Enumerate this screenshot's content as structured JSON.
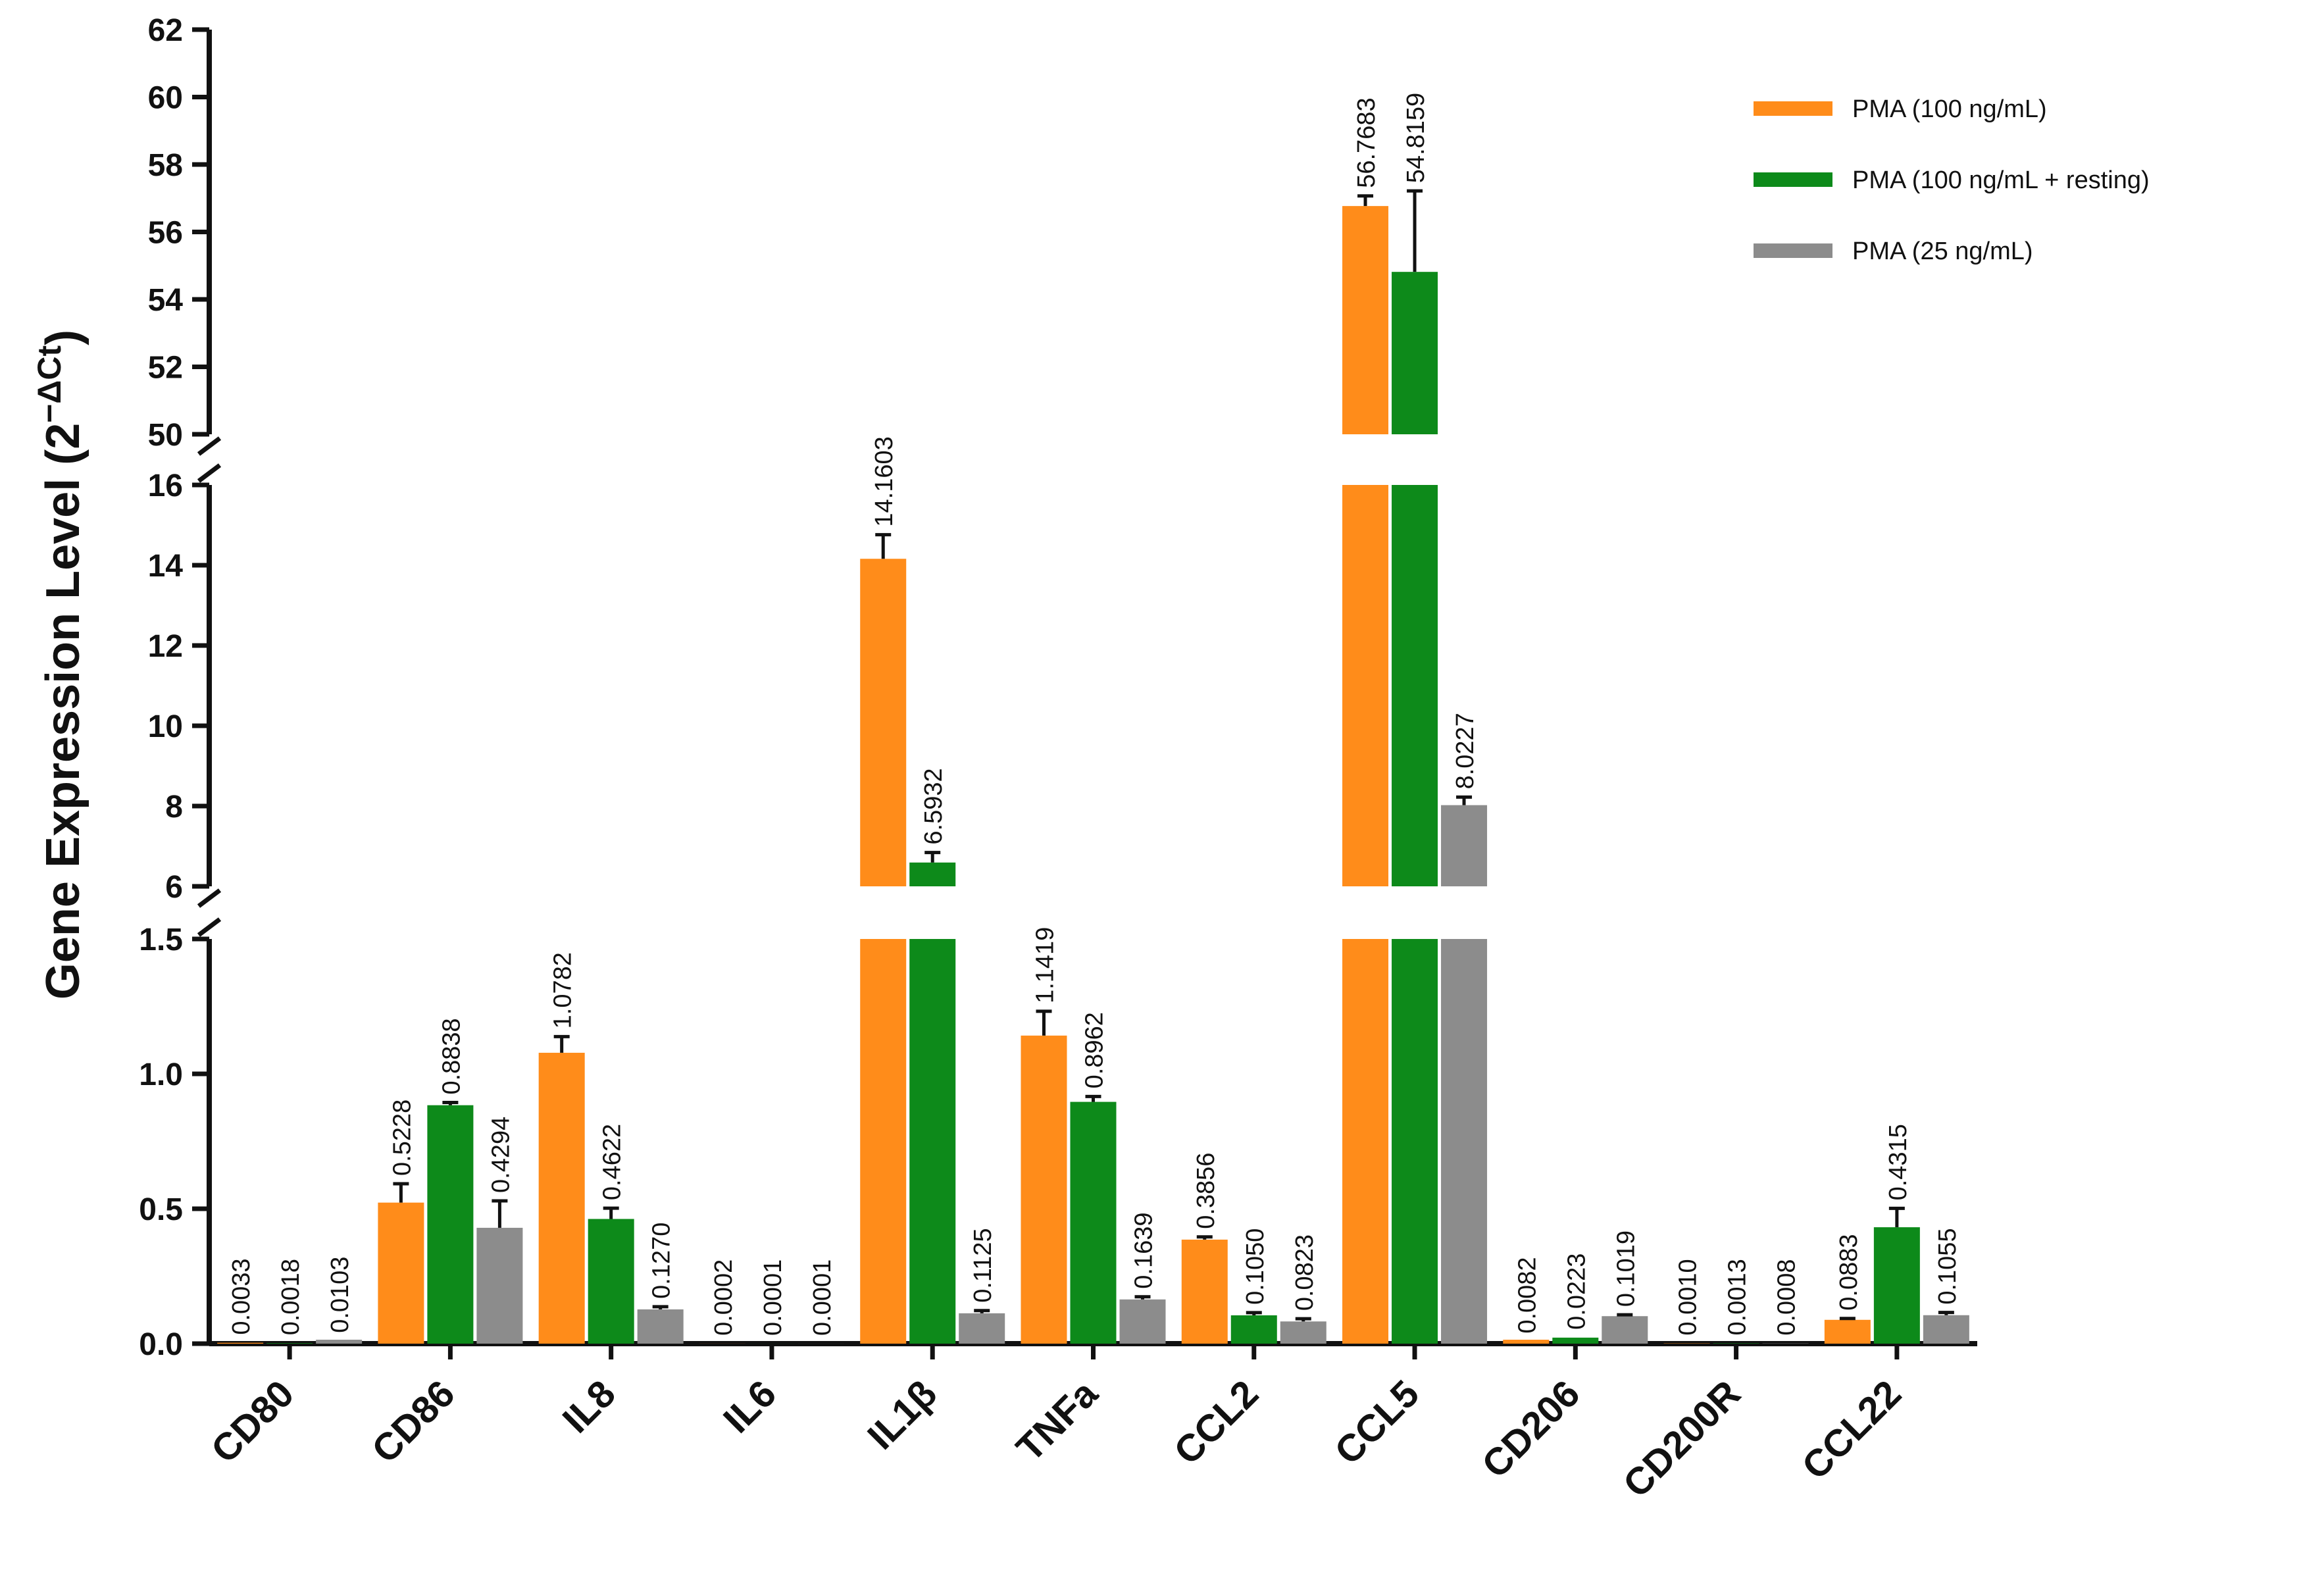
{
  "chart_data": {
    "type": "bar",
    "title": "",
    "xlabel": "",
    "ylabel": "Gene Expression Level (2",
    "ylabel_sup": "−ΔCt",
    "ylabel_close": ")",
    "categories": [
      "CD80",
      "CD86",
      "IL8",
      "IL6",
      "IL1β",
      "TNFa",
      "CCL2",
      "CCL5",
      "CD206",
      "CD200R",
      "CCL22"
    ],
    "series": [
      {
        "name": "PMA (100 ng/mL)",
        "color": "#ff8c1a",
        "values": [
          0.0033,
          0.5228,
          1.0782,
          0.0002,
          14.1603,
          1.1419,
          0.3856,
          56.7683,
          0.0082,
          0.001,
          0.0883
        ],
        "labels": [
          "0.0033",
          "0.5228",
          "1.0782",
          "0.0002",
          "14.1603",
          "1.1419",
          "0.3856",
          "56.7683",
          "0.0082",
          "0.0010",
          "0.0883"
        ],
        "errors": [
          0.0,
          0.07,
          0.06,
          0.0,
          0.6,
          0.09,
          0.01,
          0.3,
          0.0,
          0.0,
          0.005
        ]
      },
      {
        "name": "PMA (100 ng/mL +  resting)",
        "color": "#0d8a1a",
        "values": [
          0.0018,
          0.8838,
          0.4622,
          0.0001,
          6.5932,
          0.8962,
          0.105,
          54.8159,
          0.0223,
          0.0013,
          0.4315
        ],
        "labels": [
          "0.0018",
          "0.8838",
          "0.4622",
          "0.0001",
          "6.5932",
          "0.8962",
          "0.1050",
          "54.8159",
          "0.0223",
          "0.0013",
          "0.4315"
        ],
        "errors": [
          0.0,
          0.01,
          0.04,
          0.0,
          0.25,
          0.02,
          0.01,
          2.4,
          0.0,
          0.0,
          0.07
        ]
      },
      {
        "name": "PMA (25 ng/mL)",
        "color": "#8c8c8c",
        "values": [
          0.0103,
          0.4294,
          0.127,
          0.0001,
          0.1125,
          0.1639,
          0.0823,
          8.0227,
          0.1019,
          0.0008,
          0.1055
        ],
        "labels": [
          "0.0103",
          "0.4294",
          "0.1270",
          "0.0001",
          "0.1125",
          "0.1639",
          "0.0823",
          "8.0227",
          "0.1019",
          "0.0008",
          "0.1055"
        ],
        "errors": [
          0.0,
          0.1,
          0.01,
          0.0,
          0.01,
          0.01,
          0.01,
          0.2,
          0.005,
          0.0,
          0.01
        ]
      }
    ],
    "y_segments": [
      {
        "range": [
          0,
          1.5
        ],
        "ticks": [
          "0.0",
          "0.5",
          "1.0",
          "1.5"
        ],
        "tick_values": [
          0,
          0.5,
          1.0,
          1.5
        ]
      },
      {
        "range": [
          6,
          16
        ],
        "ticks": [
          "6",
          "8",
          "10",
          "12",
          "14",
          "16"
        ],
        "tick_values": [
          6,
          8,
          10,
          12,
          14,
          16
        ]
      },
      {
        "range": [
          50,
          62
        ],
        "ticks": [
          "50",
          "52",
          "54",
          "56",
          "58",
          "60",
          "62"
        ],
        "tick_values": [
          50,
          52,
          54,
          56,
          58,
          60,
          62
        ]
      }
    ],
    "axis_breaks": true,
    "grid": false,
    "legend_position": "top-right"
  }
}
